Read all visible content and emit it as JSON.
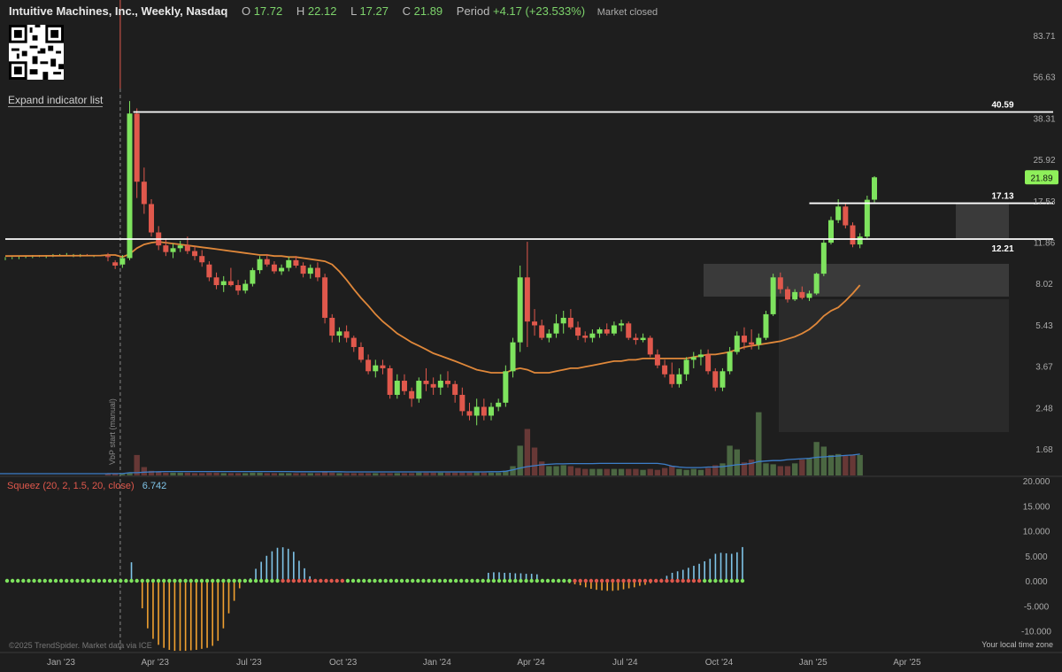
{
  "header": {
    "title": "Intuitive Machines, Inc., Weekly, Nasdaq",
    "open_label": "O",
    "open": "17.72",
    "high_label": "H",
    "high": "22.12",
    "low_label": "L",
    "low": "17.27",
    "close_label": "C",
    "close": "21.89",
    "period_label": "Period",
    "period": "+4.17 (+23.533%)",
    "status": "Market closed"
  },
  "expand_label": "Expand indicator list",
  "indicator": {
    "name": "Squeez (20, 2, 1.5, 20, close)",
    "value": "6.742"
  },
  "copyright": "©2025 TrendSpider. Market data via ICE",
  "timezone": "Your local time zone",
  "vbp_label": "VbP start (manual)",
  "colors": {
    "up": "#7ee35e",
    "down": "#e0584c",
    "ma": "#e0883a",
    "volume_ma": "#3d7ec9",
    "squeeze_pos": "#7fc4e8",
    "squeeze_neg": "#f0a030",
    "line": "#ffffff",
    "current_price": "#8ef05a"
  },
  "chart_data": [
    {
      "type": "candlestick",
      "title": "Intuitive Machines, Inc., Weekly, Nasdaq",
      "y_scale": "log",
      "y_tick_labels": [
        "83.71",
        "56.63",
        "38.31",
        "25.92",
        "17.53",
        "11.86",
        "8.02",
        "5.43",
        "3.67",
        "2.48",
        "1.68"
      ],
      "x_tick_labels": [
        "Jan '23",
        "Apr '23",
        "Jul '23",
        "Oct '23",
        "Jan '24",
        "Apr '24",
        "Jul '24",
        "Oct '24",
        "Jan '25",
        "Apr '25"
      ],
      "x_tick_weeks": [
        0,
        13,
        26,
        39,
        52,
        65,
        78,
        91,
        104,
        117
      ],
      "ylim": [
        1.45,
        120
      ],
      "current_price": "21.89",
      "levels": [
        {
          "value": 40.59,
          "label": "40.59",
          "from_week": 3.5
        },
        {
          "value": 17.13,
          "label": "17.13",
          "from_week": 97
        },
        {
          "value": 12.21,
          "label": "12.21",
          "from_week": -5
        }
      ],
      "flat_pre": [
        [
          10.1,
          10.3,
          10.0,
          10.2
        ],
        [
          10.2,
          10.3,
          10.1,
          10.2
        ],
        [
          10.2,
          10.4,
          10.1,
          10.3
        ],
        [
          10.3,
          10.4,
          10.2,
          10.3
        ],
        [
          10.3,
          10.5,
          10.2,
          10.4
        ],
        [
          10.4,
          10.5,
          10.3,
          10.4
        ],
        [
          10.3,
          10.5,
          10.2,
          10.4
        ],
        [
          10.4,
          10.6,
          10.3,
          10.5
        ],
        [
          10.5,
          10.6,
          10.4,
          10.5
        ],
        [
          10.5,
          10.7,
          10.4,
          10.5
        ],
        [
          10.4,
          10.6,
          10.3,
          10.4
        ],
        [
          10.4,
          10.6,
          10.3,
          10.5
        ],
        [
          10.5,
          10.6,
          10.4,
          10.4
        ],
        [
          10.4,
          10.5,
          10.3,
          10.4
        ]
      ],
      "candles": [
        [
          10.4,
          10.7,
          9.9,
          10.3
        ],
        [
          9.8,
          10.0,
          9.2,
          9.5
        ],
        [
          9.6,
          10.5,
          9.3,
          10.2
        ],
        [
          10.2,
          45.0,
          10.0,
          40.0
        ],
        [
          40.0,
          42.0,
          18.0,
          21.0
        ],
        [
          21.0,
          24.0,
          15.5,
          17.0
        ],
        [
          17.0,
          17.8,
          12.5,
          13.0
        ],
        [
          13.0,
          13.8,
          11.0,
          11.5
        ],
        [
          11.5,
          12.3,
          10.4,
          10.8
        ],
        [
          10.8,
          11.7,
          10.2,
          11.2
        ],
        [
          11.2,
          12.0,
          10.8,
          11.5
        ],
        [
          11.5,
          12.5,
          10.6,
          10.9
        ],
        [
          10.9,
          11.4,
          10.0,
          10.4
        ],
        [
          10.4,
          11.0,
          9.4,
          9.8
        ],
        [
          9.6,
          9.9,
          8.2,
          8.5
        ],
        [
          8.5,
          8.9,
          7.6,
          7.9
        ],
        [
          7.9,
          8.6,
          7.4,
          8.2
        ],
        [
          8.2,
          9.3,
          7.8,
          7.9
        ],
        [
          7.9,
          8.3,
          7.2,
          7.5
        ],
        [
          7.5,
          8.3,
          7.3,
          8.0
        ],
        [
          8.0,
          9.3,
          7.8,
          9.1
        ],
        [
          9.1,
          10.4,
          8.8,
          10.1
        ],
        [
          10.1,
          10.6,
          9.4,
          9.6
        ],
        [
          9.6,
          9.9,
          8.8,
          9.0
        ],
        [
          9.0,
          9.6,
          8.7,
          9.3
        ],
        [
          9.3,
          10.3,
          9.0,
          10.0
        ],
        [
          10.0,
          10.4,
          9.3,
          9.5
        ],
        [
          9.5,
          9.8,
          8.5,
          8.8
        ],
        [
          8.8,
          9.6,
          8.4,
          9.3
        ],
        [
          9.3,
          9.8,
          8.2,
          8.5
        ],
        [
          8.5,
          8.8,
          5.5,
          5.8
        ],
        [
          5.8,
          6.0,
          4.6,
          4.9
        ],
        [
          4.9,
          5.3,
          4.6,
          5.1
        ],
        [
          5.1,
          5.4,
          4.6,
          4.8
        ],
        [
          4.8,
          4.9,
          4.2,
          4.4
        ],
        [
          4.4,
          4.6,
          3.8,
          3.9
        ],
        [
          3.9,
          4.1,
          3.4,
          3.5
        ],
        [
          3.5,
          3.9,
          3.3,
          3.7
        ],
        [
          3.7,
          3.9,
          3.4,
          3.6
        ],
        [
          3.6,
          3.7,
          2.7,
          2.8
        ],
        [
          2.8,
          3.4,
          2.7,
          3.2
        ],
        [
          3.2,
          3.4,
          2.8,
          2.9
        ],
        [
          2.9,
          3.0,
          2.5,
          2.7
        ],
        [
          2.7,
          3.3,
          2.6,
          3.2
        ],
        [
          3.2,
          3.6,
          2.9,
          3.1
        ],
        [
          3.1,
          3.3,
          2.8,
          3.0
        ],
        [
          3.0,
          3.4,
          2.8,
          3.2
        ],
        [
          3.2,
          3.5,
          3.0,
          3.1
        ],
        [
          3.1,
          3.2,
          2.6,
          2.8
        ],
        [
          2.8,
          3.0,
          2.3,
          2.4
        ],
        [
          2.4,
          2.6,
          2.2,
          2.3
        ],
        [
          2.3,
          2.7,
          2.1,
          2.5
        ],
        [
          2.5,
          2.7,
          2.2,
          2.3
        ],
        [
          2.3,
          2.6,
          2.2,
          2.5
        ],
        [
          2.5,
          2.7,
          2.4,
          2.6
        ],
        [
          2.6,
          3.7,
          2.5,
          3.5
        ],
        [
          3.5,
          4.8,
          3.3,
          4.6
        ],
        [
          4.6,
          9.5,
          4.2,
          8.5
        ],
        [
          8.5,
          11.9,
          4.4,
          5.6
        ],
        [
          5.6,
          6.3,
          4.9,
          5.4
        ],
        [
          5.4,
          5.7,
          4.7,
          4.8
        ],
        [
          4.8,
          5.2,
          4.6,
          5.0
        ],
        [
          5.0,
          6.0,
          4.8,
          5.5
        ],
        [
          5.5,
          6.2,
          5.0,
          5.8
        ],
        [
          5.8,
          6.3,
          5.2,
          5.3
        ],
        [
          5.3,
          5.6,
          4.7,
          4.9
        ],
        [
          4.9,
          5.1,
          4.6,
          4.8
        ],
        [
          4.8,
          5.2,
          4.6,
          5.0
        ],
        [
          5.0,
          5.3,
          4.8,
          5.2
        ],
        [
          5.2,
          5.5,
          4.9,
          5.0
        ],
        [
          5.0,
          5.6,
          4.9,
          5.4
        ],
        [
          5.4,
          5.7,
          5.1,
          5.5
        ],
        [
          5.5,
          5.6,
          4.7,
          4.8
        ],
        [
          4.8,
          5.0,
          4.5,
          4.7
        ],
        [
          4.7,
          5.0,
          4.6,
          4.8
        ],
        [
          4.8,
          4.9,
          4.0,
          4.1
        ],
        [
          4.1,
          4.3,
          3.6,
          3.7
        ],
        [
          3.7,
          3.9,
          3.3,
          3.4
        ],
        [
          3.4,
          3.8,
          3.0,
          3.1
        ],
        [
          3.1,
          3.6,
          3.0,
          3.4
        ],
        [
          3.4,
          4.0,
          3.2,
          3.9
        ],
        [
          3.9,
          4.2,
          3.6,
          4.0
        ],
        [
          4.0,
          4.3,
          3.7,
          4.1
        ],
        [
          4.1,
          4.3,
          3.4,
          3.5
        ],
        [
          3.5,
          3.6,
          2.9,
          3.0
        ],
        [
          3.0,
          3.6,
          2.9,
          3.5
        ],
        [
          3.5,
          4.4,
          3.4,
          4.2
        ],
        [
          4.2,
          5.1,
          4.1,
          4.9
        ],
        [
          4.9,
          5.3,
          4.3,
          4.6
        ],
        [
          4.6,
          5.2,
          4.3,
          4.5
        ],
        [
          4.5,
          5.0,
          4.3,
          4.8
        ],
        [
          4.8,
          6.2,
          4.7,
          6.0
        ],
        [
          6.0,
          8.8,
          5.9,
          8.5
        ],
        [
          8.5,
          8.9,
          7.3,
          7.6
        ],
        [
          7.6,
          7.8,
          6.7,
          6.9
        ],
        [
          6.9,
          7.6,
          6.8,
          7.4
        ],
        [
          7.4,
          7.8,
          6.9,
          7.0
        ],
        [
          7.0,
          7.5,
          6.8,
          7.3
        ],
        [
          7.3,
          8.9,
          7.2,
          8.8
        ],
        [
          8.8,
          12.1,
          8.6,
          11.8
        ],
        [
          11.8,
          15.1,
          11.6,
          14.6
        ],
        [
          14.6,
          17.8,
          14.2,
          16.6
        ],
        [
          16.6,
          17.1,
          13.5,
          13.9
        ],
        [
          13.9,
          14.3,
          11.3,
          11.6
        ],
        [
          11.6,
          12.9,
          11.2,
          12.5
        ],
        [
          12.5,
          18.4,
          12.3,
          17.7
        ],
        [
          17.72,
          22.12,
          17.27,
          21.89
        ]
      ],
      "ma": [
        10.5,
        10.5,
        10.3,
        10.6,
        11.2,
        11.6,
        11.8,
        11.9,
        11.8,
        11.7,
        11.6,
        11.5,
        11.4,
        11.3,
        11.2,
        11.1,
        11.0,
        10.9,
        10.8,
        10.7,
        10.6,
        10.5,
        10.5,
        10.4,
        10.4,
        10.3,
        10.3,
        10.2,
        10.1,
        10.0,
        9.9,
        9.6,
        9.0,
        8.3,
        7.6,
        7.0,
        6.5,
        6.0,
        5.6,
        5.3,
        5.0,
        4.8,
        4.6,
        4.45,
        4.3,
        4.15,
        4.05,
        3.95,
        3.85,
        3.75,
        3.65,
        3.55,
        3.5,
        3.45,
        3.45,
        3.45,
        3.55,
        3.6,
        3.55,
        3.45,
        3.45,
        3.45,
        3.5,
        3.55,
        3.6,
        3.6,
        3.65,
        3.7,
        3.75,
        3.8,
        3.85,
        3.85,
        3.9,
        3.9,
        3.95,
        3.95,
        3.95,
        3.95,
        3.95,
        3.95,
        3.95,
        4.0,
        4.05,
        4.1,
        4.1,
        4.15,
        4.2,
        4.3,
        4.4,
        4.45,
        4.5,
        4.55,
        4.6,
        4.65,
        4.75,
        4.85,
        5.0,
        5.2,
        5.5,
        5.9,
        6.2,
        6.4,
        6.8,
        7.3,
        7.9
      ],
      "volume": [
        0.15,
        0.15,
        0.15,
        0.25,
        2.2,
        0.9,
        0.5,
        0.4,
        0.3,
        0.3,
        0.3,
        0.3,
        0.25,
        0.25,
        0.3,
        0.3,
        0.25,
        0.25,
        0.25,
        0.25,
        0.3,
        0.3,
        0.25,
        0.25,
        0.25,
        0.25,
        0.25,
        0.25,
        0.25,
        0.25,
        0.35,
        0.3,
        0.25,
        0.25,
        0.25,
        0.25,
        0.25,
        0.25,
        0.25,
        0.25,
        0.25,
        0.25,
        0.25,
        0.3,
        0.3,
        0.3,
        0.3,
        0.3,
        0.3,
        0.3,
        0.3,
        0.3,
        0.3,
        0.3,
        0.3,
        0.5,
        1.0,
        3.2,
        5.0,
        3.0,
        1.5,
        1.0,
        1.0,
        1.1,
        1.0,
        0.8,
        0.7,
        0.7,
        0.7,
        0.7,
        0.7,
        0.7,
        0.7,
        0.7,
        0.6,
        0.7,
        0.6,
        0.8,
        1.0,
        0.7,
        0.6,
        0.7,
        0.6,
        0.8,
        1.1,
        1.3,
        3.2,
        2.8,
        1.4,
        1.7,
        6.8,
        1.3,
        1.2,
        1.0,
        1.0,
        1.3,
        1.7,
        1.8,
        3.6,
        3.1,
        2.2,
        2.3,
        2.1,
        2.2,
        2.2
      ],
      "volume_ma": [
        0.2,
        0.2,
        0.2,
        0.3,
        0.3,
        0.35,
        0.38,
        0.4,
        0.42,
        0.42,
        0.42,
        0.42,
        0.42,
        0.42,
        0.42,
        0.42,
        0.42,
        0.42,
        0.42,
        0.42,
        0.42,
        0.42,
        0.42,
        0.42,
        0.42,
        0.42,
        0.4,
        0.4,
        0.4,
        0.4,
        0.4,
        0.4,
        0.4,
        0.38,
        0.38,
        0.38,
        0.38,
        0.38,
        0.38,
        0.38,
        0.38,
        0.38,
        0.38,
        0.38,
        0.38,
        0.38,
        0.38,
        0.38,
        0.38,
        0.38,
        0.38,
        0.38,
        0.38,
        0.4,
        0.4,
        0.45,
        0.6,
        0.8,
        0.95,
        1.05,
        1.15,
        1.2,
        1.25,
        1.25,
        1.28,
        1.28,
        1.28,
        1.28,
        1.3,
        1.3,
        1.3,
        1.3,
        1.3,
        1.3,
        1.3,
        1.3,
        1.3,
        1.2,
        1.0,
        0.9,
        0.85,
        0.85,
        0.85,
        0.9,
        0.9,
        0.95,
        1.05,
        1.15,
        1.2,
        1.3,
        1.5,
        1.55,
        1.6,
        1.6,
        1.7,
        1.75,
        1.8,
        1.85,
        1.95,
        2.0,
        2.05,
        2.1,
        2.15,
        2.2,
        2.3
      ]
    },
    {
      "type": "bar",
      "title": "Squeez (20, 2, 1.5, 20, close)",
      "y_tick_labels": [
        "20.000",
        "15.000",
        "10.000",
        "5.000",
        "0.000",
        "-5.000",
        "-10.000"
      ],
      "ylim": [
        -14,
        20
      ],
      "value": 6.742,
      "values": [
        0,
        0,
        0,
        0,
        0,
        0,
        0,
        0,
        0,
        0,
        0,
        0,
        0,
        0,
        0,
        0,
        0,
        0,
        0,
        0,
        0,
        0,
        0,
        3.7,
        0,
        -5.5,
        -9.5,
        -11.6,
        -12.8,
        -13.4,
        -13.8,
        -14.0,
        -14.0,
        -14.0,
        -13.9,
        -13.8,
        -13.6,
        -13.4,
        -13.0,
        -12.0,
        -9.5,
        -6.5,
        -4.0,
        -1.5,
        0,
        0.5,
        2.4,
        3.8,
        5.0,
        5.9,
        6.6,
        6.7,
        6.4,
        5.8,
        4.0,
        2.5,
        0.9,
        0,
        0,
        0,
        0,
        0,
        0,
        0,
        0,
        0,
        0,
        0,
        0,
        0,
        0,
        0,
        0,
        0,
        0,
        0,
        0,
        0,
        0,
        0,
        0,
        0,
        0,
        0,
        0,
        0,
        0,
        0,
        0,
        1.6,
        1.7,
        1.7,
        1.6,
        1.6,
        1.5,
        1.5,
        1.4,
        1.4,
        1.3,
        0,
        0,
        0,
        0,
        0,
        -0.5,
        -0.7,
        -0.9,
        -1.3,
        -1.6,
        -1.8,
        -1.9,
        -2.0,
        -2.0,
        -1.9,
        -1.7,
        -1.5,
        -1.3,
        -1.0,
        -0.8,
        -0.5,
        0,
        0.4,
        1.0,
        1.6,
        1.9,
        2.2,
        2.6,
        3.0,
        3.4,
        3.9,
        4.4,
        5.4,
        5.6,
        5.5,
        5.4,
        5.7,
        6.742
      ]
    }
  ]
}
